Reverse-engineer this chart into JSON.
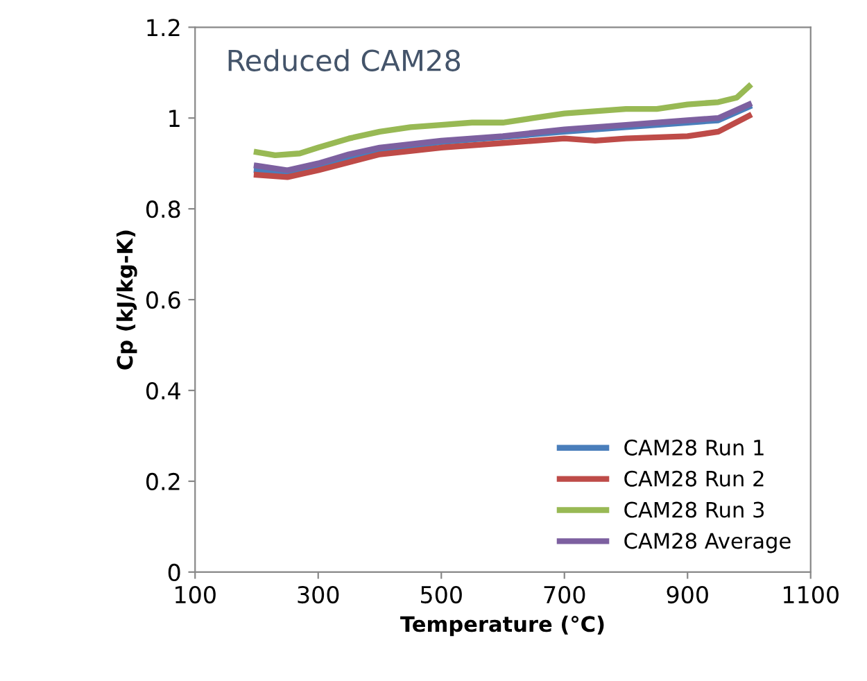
{
  "chart_data": {
    "type": "line",
    "title": "Reduced CAM28",
    "xlabel": "Temperature (°C)",
    "ylabel": "Cp (kJ/kg-K)",
    "xlim": [
      100,
      1100
    ],
    "xticks": [
      100,
      300,
      500,
      700,
      900,
      1100
    ],
    "ylim": [
      0,
      1.2
    ],
    "yticks": [
      0,
      0.2,
      0.4,
      0.6,
      0.8,
      1,
      1.2
    ],
    "grid": false,
    "legend": "bottom right",
    "marker": "none",
    "line_style": "solid",
    "series": [
      {
        "name": "CAM28 Run 1",
        "color": "#4a7ebb",
        "x": [
          200,
          250,
          300,
          400,
          500,
          600,
          700,
          800,
          900,
          950,
          1000
        ],
        "values": [
          0.885,
          0.878,
          0.893,
          0.93,
          0.947,
          0.958,
          0.97,
          0.98,
          0.99,
          0.995,
          1.025
        ]
      },
      {
        "name": "CAM28 Run 2",
        "color": "#be4b48",
        "x": [
          200,
          250,
          300,
          400,
          500,
          600,
          700,
          750,
          800,
          900,
          950,
          1000
        ],
        "values": [
          0.875,
          0.87,
          0.885,
          0.92,
          0.935,
          0.945,
          0.955,
          0.95,
          0.955,
          0.96,
          0.97,
          1.005
        ]
      },
      {
        "name": "CAM28 Run 3",
        "color": "#98b954",
        "x": [
          200,
          230,
          270,
          300,
          350,
          400,
          450,
          500,
          550,
          600,
          650,
          700,
          750,
          800,
          850,
          900,
          950,
          980,
          1000
        ],
        "values": [
          0.925,
          0.918,
          0.922,
          0.935,
          0.955,
          0.97,
          0.98,
          0.985,
          0.99,
          0.99,
          1.0,
          1.01,
          1.015,
          1.02,
          1.02,
          1.03,
          1.035,
          1.045,
          1.07
        ]
      },
      {
        "name": "CAM28 Average",
        "color": "#7d60a0",
        "x": [
          200,
          250,
          300,
          350,
          400,
          500,
          600,
          700,
          800,
          900,
          950,
          1000
        ],
        "values": [
          0.895,
          0.885,
          0.9,
          0.92,
          0.935,
          0.95,
          0.96,
          0.975,
          0.985,
          0.995,
          1.0,
          1.03
        ]
      }
    ]
  }
}
